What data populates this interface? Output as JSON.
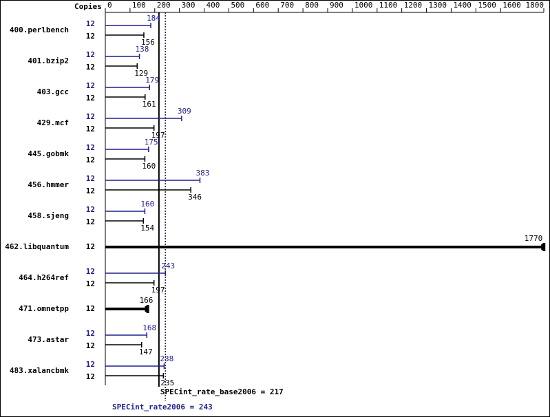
{
  "chart_data": {
    "type": "bar",
    "orientation": "horizontal",
    "copies_label": "Copies",
    "categories": [
      "400.perlbench",
      "401.bzip2",
      "403.gcc",
      "429.mcf",
      "445.gobmk",
      "456.hmmer",
      "458.sjeng",
      "462.libquantum",
      "464.h264ref",
      "471.omnetpp",
      "473.astar",
      "483.xalancbmk"
    ],
    "series": [
      {
        "color": "#1f1f8f",
        "copies": [
          12,
          12,
          12,
          12,
          12,
          12,
          12,
          null,
          12,
          null,
          12,
          12
        ],
        "values": [
          184,
          138,
          179,
          309,
          175,
          383,
          160,
          null,
          243,
          null,
          168,
          238
        ]
      },
      {
        "color": "#000000",
        "copies": [
          12,
          12,
          12,
          12,
          12,
          12,
          12,
          12,
          12,
          12,
          12,
          12
        ],
        "values": [
          156,
          129,
          161,
          197,
          160,
          346,
          154,
          1770,
          197,
          166,
          147,
          235
        ]
      }
    ],
    "xlim": [
      0,
      1800
    ],
    "xticks": [
      0,
      100,
      200,
      300,
      400,
      500,
      600,
      700,
      800,
      900,
      1000,
      1100,
      1200,
      1300,
      1400,
      1500,
      1600,
      1800
    ],
    "reference_lines": [
      {
        "label": "SPECint_rate_base2006 = 217",
        "value": 217,
        "color": "#000000",
        "style": "solid"
      },
      {
        "label": "SPECint_rate2006 = 243",
        "value": 243,
        "color": "#1f1f8f",
        "style": "dotted"
      }
    ]
  }
}
